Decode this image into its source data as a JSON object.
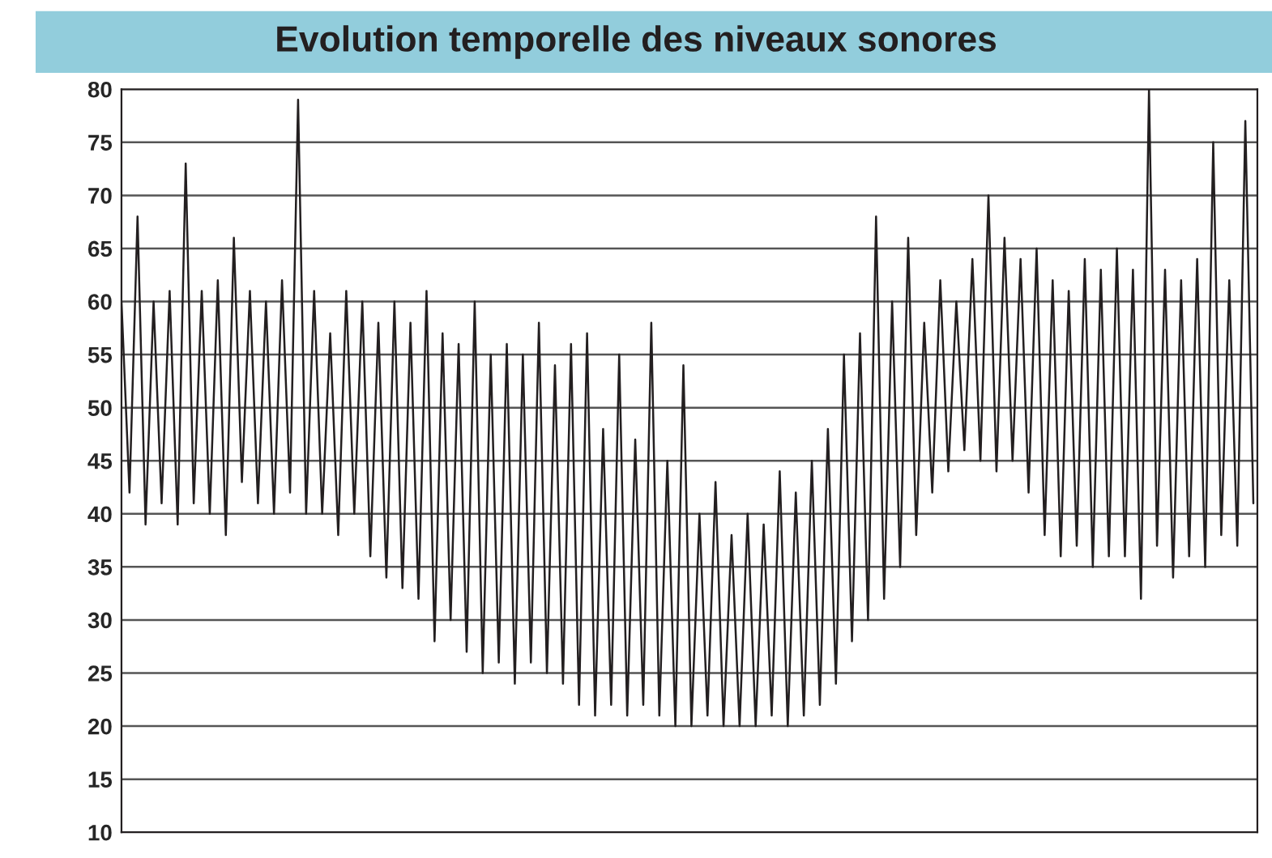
{
  "chart_data": {
    "type": "line",
    "title": "Evolution temporelle des niveaux sonores",
    "categories": [
      null,
      null,
      null,
      null,
      null,
      null,
      null,
      null,
      null,
      null,
      null,
      null,
      null,
      null,
      null,
      null,
      null,
      null,
      null,
      null,
      null,
      null,
      null,
      null,
      null,
      null,
      null,
      null,
      null,
      null,
      null,
      null,
      null,
      null,
      null,
      null,
      null,
      null,
      null,
      null,
      null,
      null,
      null,
      null,
      null,
      null,
      null,
      null,
      null,
      null,
      null,
      null,
      null,
      null,
      null,
      null,
      null,
      null,
      null,
      null,
      null,
      null,
      null,
      null,
      null,
      null,
      null,
      null,
      null,
      null,
      null,
      null,
      null,
      null,
      null,
      null,
      null,
      null,
      null,
      null,
      null,
      null,
      null,
      null,
      null,
      null,
      null,
      null,
      null,
      null,
      null,
      null,
      null,
      null,
      null,
      null,
      null,
      null,
      null,
      null,
      null,
      null,
      null,
      null,
      null,
      null,
      null,
      null,
      null,
      null,
      null,
      null,
      null,
      null,
      null,
      null,
      null,
      null,
      null,
      null,
      null,
      null,
      null,
      null,
      null,
      null,
      null,
      null,
      null,
      null,
      null,
      null,
      null,
      null,
      null,
      null,
      null,
      null,
      null,
      null,
      null,
      null
    ],
    "series": [
      {
        "color": "#231f20",
        "values": [
          60,
          42,
          68,
          39,
          60,
          41,
          61,
          39,
          73,
          41,
          61,
          40,
          62,
          38,
          66,
          43,
          61,
          41,
          60,
          40,
          62,
          42,
          79,
          40,
          61,
          40,
          57,
          38,
          61,
          40,
          60,
          36,
          58,
          34,
          60,
          33,
          58,
          32,
          61,
          28,
          57,
          30,
          56,
          27,
          60,
          25,
          55,
          26,
          56,
          24,
          55,
          26,
          58,
          25,
          54,
          24,
          56,
          22,
          57,
          21,
          48,
          22,
          55,
          21,
          47,
          22,
          58,
          21,
          45,
          20,
          54,
          20,
          40,
          21,
          43,
          20,
          38,
          20,
          40,
          20,
          39,
          21,
          44,
          20,
          42,
          21,
          45,
          22,
          48,
          24,
          55,
          28,
          57,
          30,
          68,
          32,
          60,
          35,
          66,
          38,
          58,
          42,
          62,
          44,
          60,
          46,
          64,
          45,
          70,
          44,
          66,
          45,
          64,
          42,
          65,
          38,
          62,
          36,
          61,
          37,
          64,
          35,
          63,
          36,
          65,
          36,
          63,
          32,
          80,
          37,
          63,
          34,
          62,
          36,
          64,
          35,
          75,
          38,
          62,
          37,
          77,
          41
        ]
      }
    ],
    "ylim": [
      10,
      80
    ],
    "yticks": [
      10,
      15,
      20,
      25,
      30,
      35,
      40,
      45,
      50,
      55,
      60,
      65,
      70,
      75,
      80
    ],
    "grid": "y",
    "marker": "none",
    "line_style": "solid"
  }
}
